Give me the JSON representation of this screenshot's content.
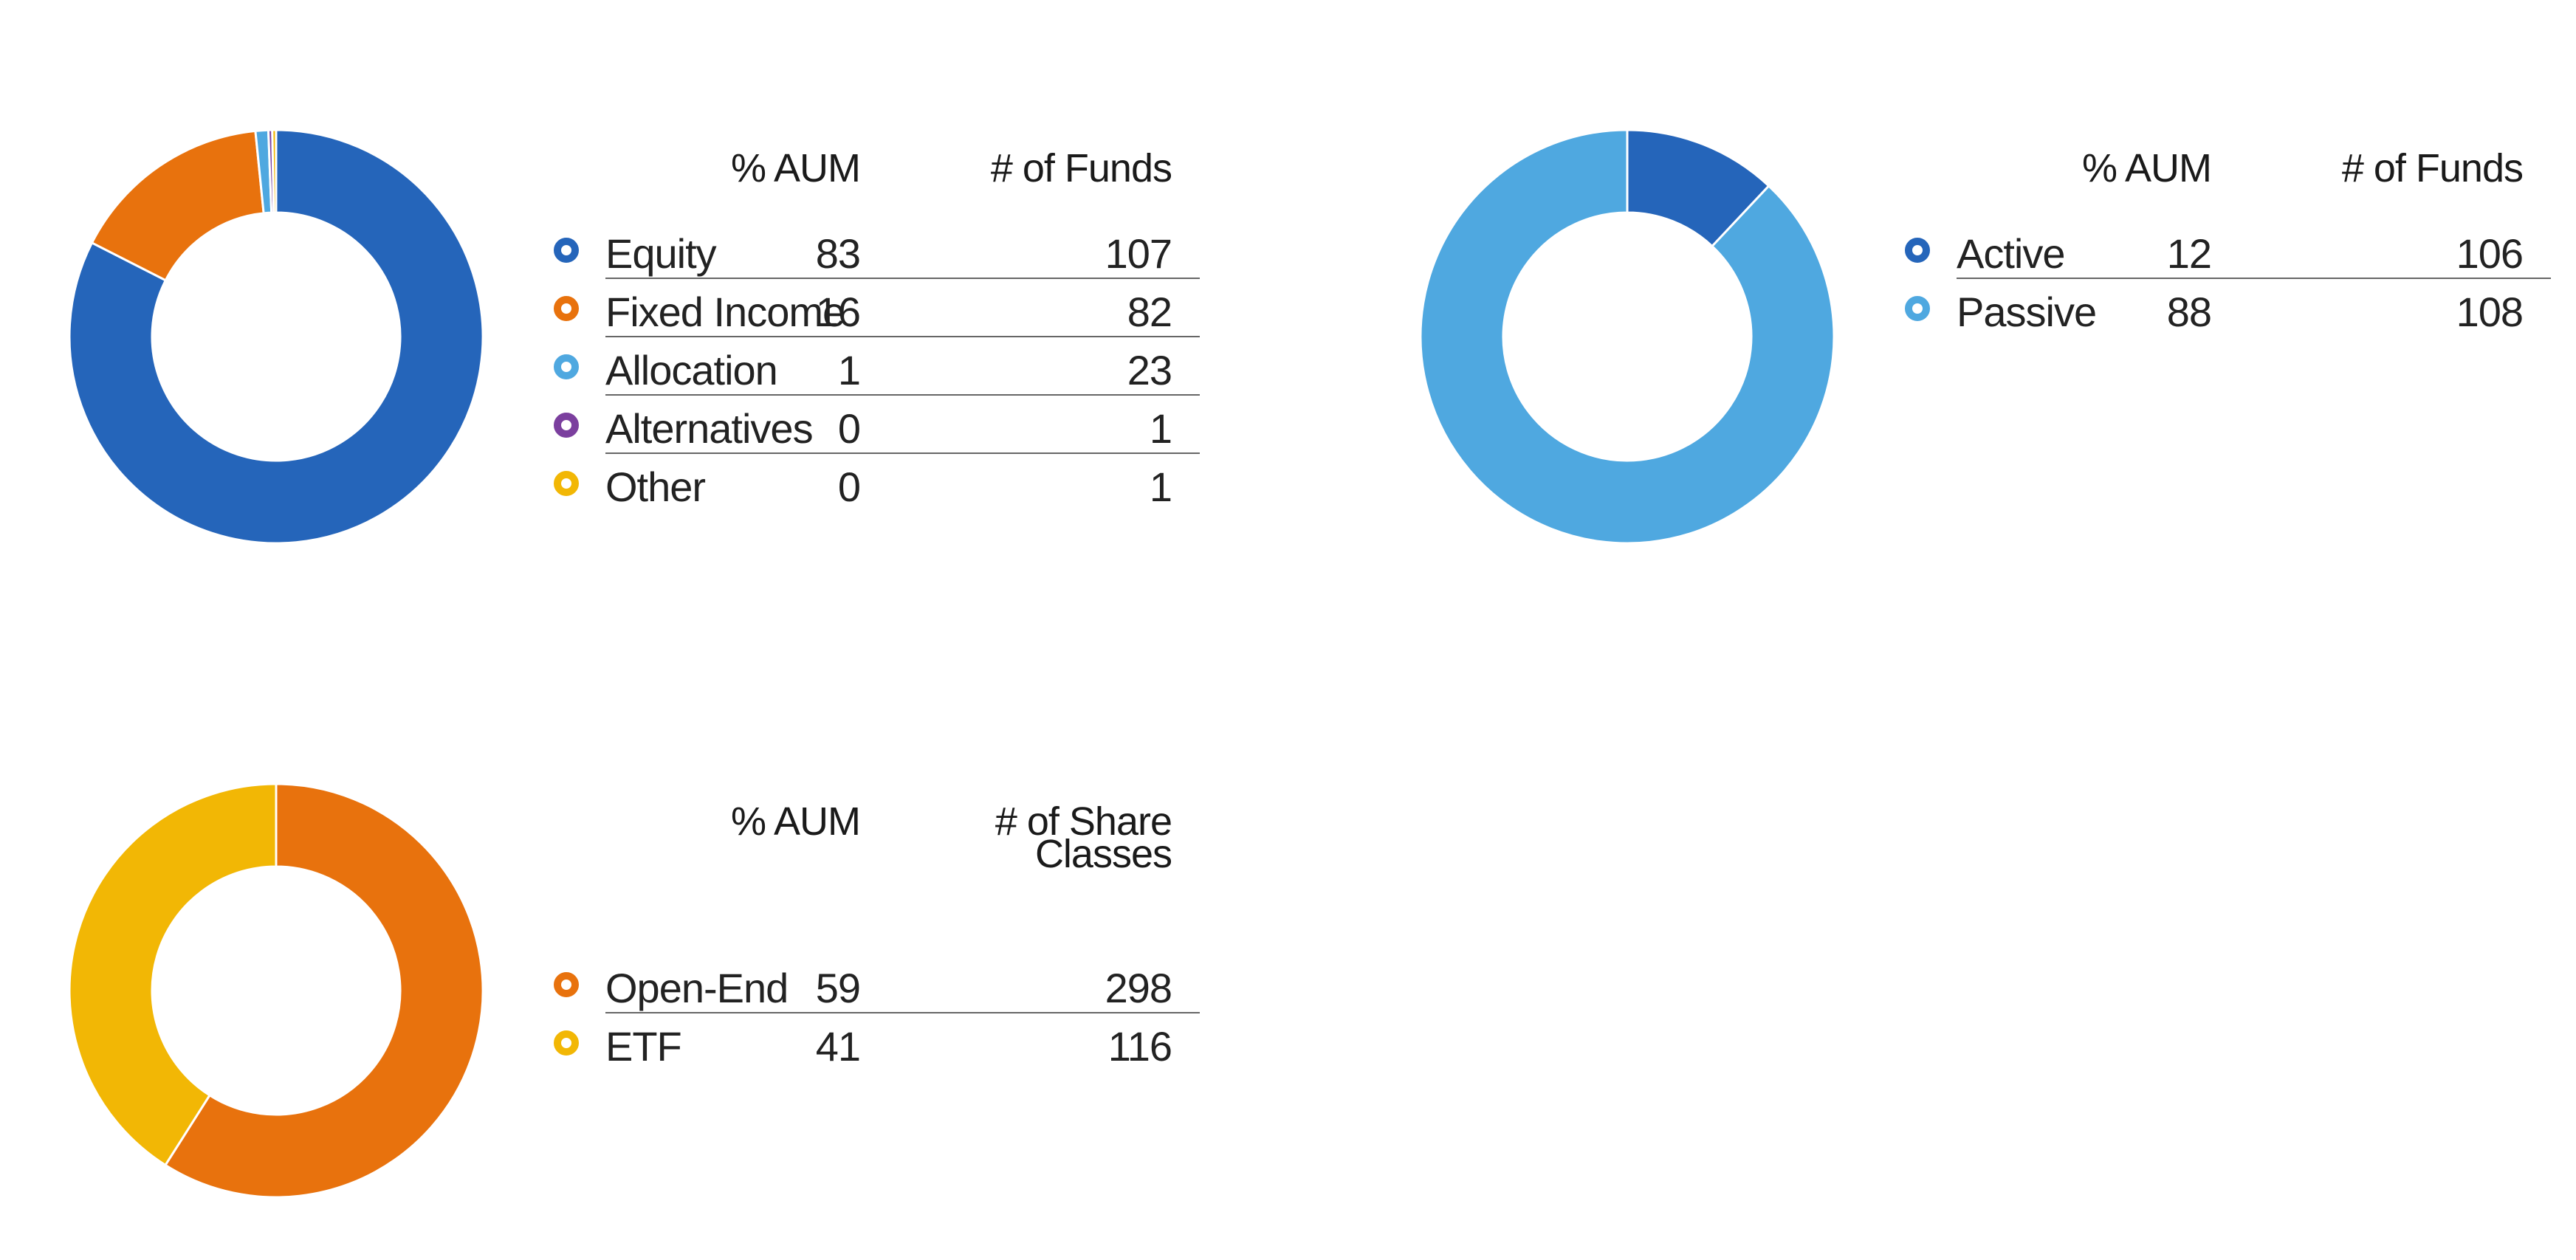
{
  "charts": {
    "asset_class": {
      "headers": {
        "aum": "% AUM",
        "funds": "# of Funds"
      },
      "rows": [
        {
          "label": "Equity",
          "aum": "83",
          "funds": "107",
          "color": "#2565BA"
        },
        {
          "label": "Fixed Income",
          "aum": "16",
          "funds": "82",
          "color": "#E8720D"
        },
        {
          "label": "Allocation",
          "aum": "1",
          "funds": "23",
          "color": "#4FA8E0"
        },
        {
          "label": "Alternatives",
          "aum": "0",
          "funds": "1",
          "color": "#7B3F9E"
        },
        {
          "label": "Other",
          "aum": "0",
          "funds": "1",
          "color": "#F2B705"
        }
      ]
    },
    "active_passive": {
      "headers": {
        "aum": "% AUM",
        "funds": "# of Funds"
      },
      "rows": [
        {
          "label": "Active",
          "aum": "12",
          "funds": "106",
          "color": "#2565BA"
        },
        {
          "label": "Passive",
          "aum": "88",
          "funds": "108",
          "color": "#4FA8E0"
        }
      ]
    },
    "vehicle": {
      "headers": {
        "aum": "% AUM",
        "funds_line1": "# of Share",
        "funds_line2": "Classes"
      },
      "rows": [
        {
          "label": "Open-End",
          "aum": "59",
          "funds": "298",
          "color": "#E8720D"
        },
        {
          "label": "ETF",
          "aum": "41",
          "funds": "116",
          "color": "#F2B705"
        }
      ]
    }
  },
  "chart_data": [
    {
      "type": "pie",
      "donut": true,
      "categories": [
        "Equity",
        "Fixed Income",
        "Allocation",
        "Alternatives",
        "Other"
      ],
      "values": [
        82.5,
        15.9,
        1.0,
        0.3,
        0.3
      ],
      "colors": [
        "#2565BA",
        "#E8720D",
        "#4FA8E0",
        "#7B3F9E",
        "#F2B705"
      ],
      "columns": [
        "% AUM",
        "# of Funds"
      ]
    },
    {
      "type": "pie",
      "donut": true,
      "categories": [
        "Active",
        "Passive"
      ],
      "values": [
        12,
        88
      ],
      "colors": [
        "#2565BA",
        "#4FA8E0"
      ],
      "columns": [
        "% AUM",
        "# of Funds"
      ]
    },
    {
      "type": "pie",
      "donut": true,
      "categories": [
        "Open-End",
        "ETF"
      ],
      "values": [
        59,
        41
      ],
      "colors": [
        "#E8720D",
        "#F2B705"
      ],
      "columns": [
        "% AUM",
        "# of Share Classes"
      ]
    }
  ]
}
